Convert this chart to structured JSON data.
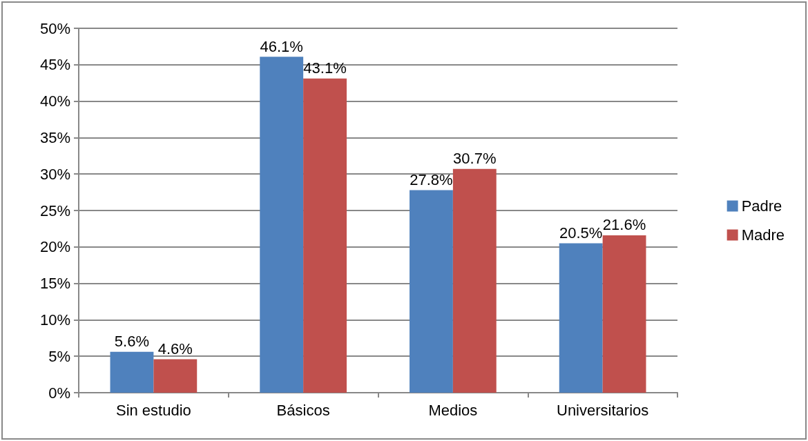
{
  "chart_data": {
    "type": "bar",
    "categories": [
      "Sin estudio",
      "Básicos",
      "Medios",
      "Universitarios"
    ],
    "series": [
      {
        "name": "Padre",
        "color": "#4f81bd",
        "values": [
          5.6,
          46.1,
          27.8,
          20.5
        ],
        "value_labels": [
          "5.6%",
          "46.1%",
          "27.8%",
          "20.5%"
        ]
      },
      {
        "name": "Madre",
        "color": "#c0504d",
        "values": [
          4.6,
          43.1,
          30.7,
          21.6
        ],
        "value_labels": [
          "4.6%",
          "43.1%",
          "30.7%",
          "21.6%"
        ]
      }
    ],
    "ylim": [
      0,
      50
    ],
    "yticks": [
      {
        "value": 0,
        "label": "0%"
      },
      {
        "value": 5,
        "label": "5%"
      },
      {
        "value": 10,
        "label": "10%"
      },
      {
        "value": 15,
        "label": "15%"
      },
      {
        "value": 20,
        "label": "20%"
      },
      {
        "value": 25,
        "label": "25%"
      },
      {
        "value": 30,
        "label": "30%"
      },
      {
        "value": 35,
        "label": "35%"
      },
      {
        "value": 40,
        "label": "40%"
      },
      {
        "value": 45,
        "label": "45%"
      },
      {
        "value": 50,
        "label": "50%"
      }
    ],
    "grid": "y",
    "legend": "right"
  }
}
